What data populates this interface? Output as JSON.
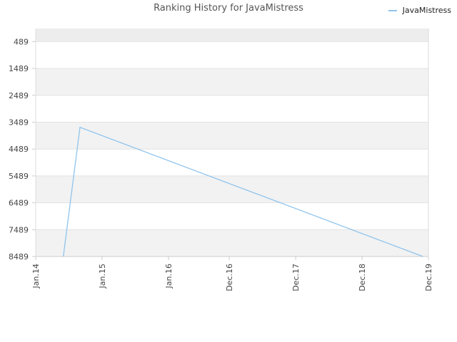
{
  "chart_data": {
    "type": "line",
    "title": "Ranking History for JavaMistress",
    "xlabel": "",
    "ylabel": "",
    "y_inverted": true,
    "ylim": [
      0,
      8489
    ],
    "y_ticks": [
      489,
      1489,
      2489,
      3489,
      4489,
      5489,
      6489,
      7489,
      8489
    ],
    "x_ticks": [
      "Jan.14",
      "Jan.15",
      "Jan.16",
      "Dec.16",
      "Dec.17",
      "Dec.18",
      "Dec.19"
    ],
    "grid": true,
    "legend_position": "top-right",
    "series": [
      {
        "name": "JavaMistress",
        "color": "#90c4ec",
        "points": [
          {
            "x": "Jun.14",
            "y": 8489
          },
          {
            "x": "Sep.14",
            "y": 3680
          },
          {
            "x": "Nov.19",
            "y": 8489
          }
        ]
      }
    ]
  }
}
